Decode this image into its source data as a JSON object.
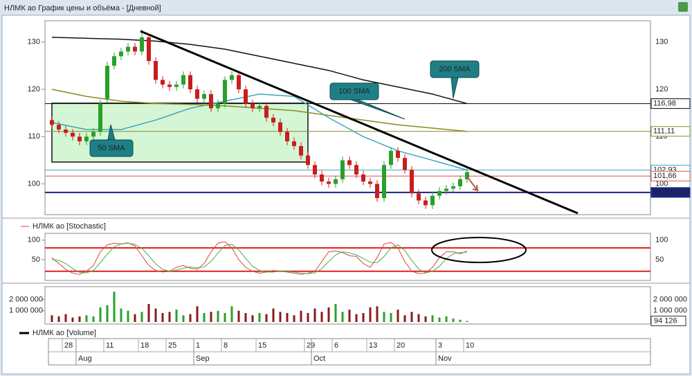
{
  "window_title": "НЛМК ао График цены и объёма - [Дневной]",
  "chart_data": [
    {
      "type": "candlestick",
      "up_color": "#2aa02a",
      "down_color": "#c81e1e",
      "open": [
        113.5,
        112.5,
        111.5,
        110.8,
        110,
        109,
        110,
        111,
        118,
        125,
        127,
        128,
        129,
        128,
        131,
        126,
        122,
        121,
        120.5,
        121,
        123,
        120,
        118,
        119,
        116,
        117,
        122,
        123,
        120,
        117,
        116,
        116.5,
        114,
        113,
        111,
        109,
        108,
        106,
        104,
        102,
        100.5,
        100,
        101,
        105,
        104,
        102,
        100.5,
        100,
        97,
        104,
        107,
        105.5,
        103,
        98,
        96.5,
        95.5,
        97.5,
        98.5,
        99,
        99.5,
        101
      ],
      "high": [
        114.3,
        113.3,
        112.3,
        111.6,
        110.8,
        110.8,
        111.8,
        117.8,
        125.8,
        127.8,
        128.8,
        129.8,
        129.8,
        132.6,
        131.8,
        126.8,
        122.8,
        121.8,
        121.8,
        123.8,
        123.8,
        120.8,
        119.8,
        119.8,
        117.8,
        122.8,
        123.8,
        123.8,
        120.8,
        117.8,
        117.3,
        117.3,
        114.8,
        113.8,
        111.8,
        109.8,
        108.8,
        106.8,
        104.8,
        102.8,
        101.3,
        101.8,
        105.8,
        105.8,
        104.8,
        102.8,
        101.3,
        100.8,
        104.8,
        107.8,
        107.8,
        106.3,
        103.8,
        98.8,
        97.3,
        98.3,
        99.3,
        99.8,
        100.3,
        101.8,
        103.3
      ],
      "low": [
        111.7,
        110.7,
        110,
        109.2,
        108.2,
        108.2,
        109.2,
        110.2,
        117.2,
        124.2,
        126.2,
        127.2,
        127.2,
        127.2,
        125.2,
        121.2,
        120.2,
        119.7,
        119.7,
        120.2,
        119.2,
        117.2,
        117.2,
        115.2,
        115.2,
        116.2,
        121.2,
        119.2,
        116.2,
        115.2,
        115.2,
        113.2,
        112.2,
        110.2,
        108.2,
        107.2,
        105.2,
        103.2,
        101.2,
        99.7,
        99.2,
        99.2,
        100.2,
        103.2,
        101.2,
        99.7,
        99.2,
        96.2,
        96.2,
        103.2,
        104.7,
        102.2,
        97.2,
        95.7,
        94.7,
        94.7,
        96.7,
        97.7,
        98.2,
        98.7,
        100.2
      ],
      "close": [
        112.5,
        111.5,
        110.8,
        110,
        109,
        110,
        111,
        117,
        125,
        127,
        128,
        129,
        128,
        131,
        126,
        122,
        121,
        120.5,
        121,
        123,
        120,
        118,
        119,
        116,
        117,
        122,
        123,
        120,
        117,
        116,
        116.5,
        114,
        113,
        111,
        109,
        108,
        106,
        104,
        102,
        100.5,
        100,
        101,
        105,
        104,
        102,
        100.5,
        100,
        97,
        104,
        107,
        105.5,
        103,
        98,
        96.5,
        95.5,
        97.5,
        98.5,
        99,
        99.5,
        101,
        102.5
      ],
      "series": [
        {
          "name": "50 SMA",
          "color": "#3aa6c0",
          "x": [
            0,
            5,
            10,
            15,
            20,
            25,
            30,
            35,
            40,
            45,
            50,
            55,
            60
          ],
          "values": [
            113,
            111.5,
            111.5,
            113.5,
            116,
            117.5,
            119,
            118.5,
            114,
            110,
            107,
            105,
            102.93
          ]
        },
        {
          "name": "100 SMA",
          "color": "#8a8a20",
          "x": [
            0,
            5,
            10,
            15,
            20,
            25,
            30,
            35,
            40,
            45,
            50,
            55,
            60
          ],
          "values": [
            120,
            118.5,
            117.5,
            117,
            116.8,
            116.5,
            116,
            115.5,
            114.5,
            113.5,
            112.5,
            111.8,
            111.11
          ]
        },
        {
          "name": "200 SMA",
          "color": "#111111",
          "x": [
            0,
            5,
            10,
            15,
            20,
            25,
            30,
            35,
            40,
            45,
            50,
            55,
            60
          ],
          "values": [
            131,
            130.8,
            130.6,
            130.2,
            129.5,
            128.5,
            127,
            125.5,
            124,
            122,
            120.5,
            119,
            116.98
          ]
        }
      ],
      "price_levels": [
        {
          "value": 116.98,
          "label": "116,98",
          "color": "#000000"
        },
        {
          "value": 111.11,
          "label": "111,11",
          "color": "#8a8a20"
        },
        {
          "value": 102.93,
          "label": "102,93",
          "color": "#3aa6c0"
        },
        {
          "value": 101.66,
          "label": "101,66",
          "color": "#e05050"
        },
        {
          "value": 98.2,
          "label": "98,200000",
          "color": "#1a237e"
        }
      ],
      "ylim": [
        93.5,
        134.5
      ],
      "yticks": [
        100,
        110,
        120,
        130
      ]
    },
    {
      "type": "line",
      "title": "НЛМК ао [Stochastic]",
      "ylim": [
        0,
        112
      ],
      "yticks": [
        50,
        100
      ],
      "levels": [
        20,
        80
      ],
      "level_color": "#e02020",
      "series": [
        {
          "color": "#e04040",
          "values": [
            55,
            40,
            25,
            15,
            12,
            20,
            35,
            70,
            88,
            92,
            90,
            93,
            85,
            60,
            35,
            22,
            18,
            20,
            30,
            35,
            28,
            25,
            40,
            70,
            92,
            96,
            80,
            50,
            30,
            20,
            15,
            18,
            22,
            20,
            18,
            15,
            12,
            15,
            20,
            45,
            70,
            72,
            68,
            60,
            58,
            40,
            30,
            55,
            90,
            94,
            80,
            45,
            20,
            14,
            15,
            30,
            55,
            70,
            70,
            65,
            72
          ]
        },
        {
          "color": "#40b040",
          "values": [
            50,
            48,
            40,
            27,
            17,
            16,
            22,
            42,
            64,
            83,
            90,
            92,
            89,
            79,
            60,
            39,
            25,
            20,
            23,
            28,
            31,
            29,
            31,
            45,
            67,
            86,
            89,
            75,
            53,
            33,
            22,
            18,
            18,
            20,
            20,
            18,
            15,
            14,
            16,
            27,
            45,
            62,
            70,
            67,
            62,
            53,
            43,
            42,
            58,
            80,
            88,
            73,
            48,
            26,
            16,
            20,
            33,
            52,
            65,
            68,
            69
          ]
        }
      ]
    },
    {
      "type": "bar",
      "title": "НЛМК ао [Volume]",
      "ylim": [
        0,
        2900000
      ],
      "yticks": [
        {
          "value": 1000000,
          "label": "1 000 000"
        },
        {
          "value": 2000000,
          "label": "2 000 000"
        }
      ],
      "values": [
        600000,
        500000,
        700000,
        400000,
        500000,
        600000,
        500000,
        1300000,
        1500000,
        2700000,
        1200000,
        1000000,
        700000,
        900000,
        1600000,
        1200000,
        800000,
        900000,
        1100000,
        600000,
        700000,
        1400000,
        800000,
        900000,
        1000000,
        800000,
        1400000,
        1000000,
        800000,
        600000,
        800000,
        700000,
        1200000,
        900000,
        800000,
        600000,
        1000000,
        800000,
        1200000,
        900000,
        1300000,
        1600000,
        900000,
        1100000,
        700000,
        800000,
        1300000,
        1400000,
        900000,
        800000,
        1100000,
        600000,
        900000,
        700000,
        500000,
        600000,
        400000,
        500000,
        300000,
        200000,
        94126
      ],
      "last_value_label": "94 126",
      "categories": [
        null,
        null,
        "28",
        null,
        null,
        null,
        null,
        null,
        "11",
        null,
        null,
        null,
        null,
        "18",
        null,
        null,
        null,
        "25",
        null,
        null,
        null,
        "1",
        null,
        null,
        null,
        "8",
        null,
        null,
        null,
        null,
        "15",
        null,
        null,
        null,
        null,
        null,
        null,
        "29",
        null,
        null,
        null,
        "6",
        null,
        null,
        null,
        null,
        "13",
        null,
        null,
        null,
        "20",
        null,
        null,
        null,
        null,
        null,
        "3",
        null,
        null,
        null,
        "10"
      ],
      "months": [
        null,
        null,
        null,
        null,
        "Aug",
        null,
        null,
        null,
        null,
        null,
        null,
        null,
        null,
        null,
        null,
        null,
        null,
        null,
        null,
        null,
        null,
        "Sep",
        null,
        null,
        null,
        null,
        null,
        null,
        null,
        null,
        null,
        null,
        null,
        null,
        null,
        null,
        null,
        null,
        "Oct",
        null,
        null,
        null,
        null,
        null,
        null,
        null,
        null,
        null,
        null,
        null,
        null,
        null,
        null,
        null,
        null,
        null,
        "Nov",
        null,
        null,
        null,
        null
      ]
    }
  ]
}
